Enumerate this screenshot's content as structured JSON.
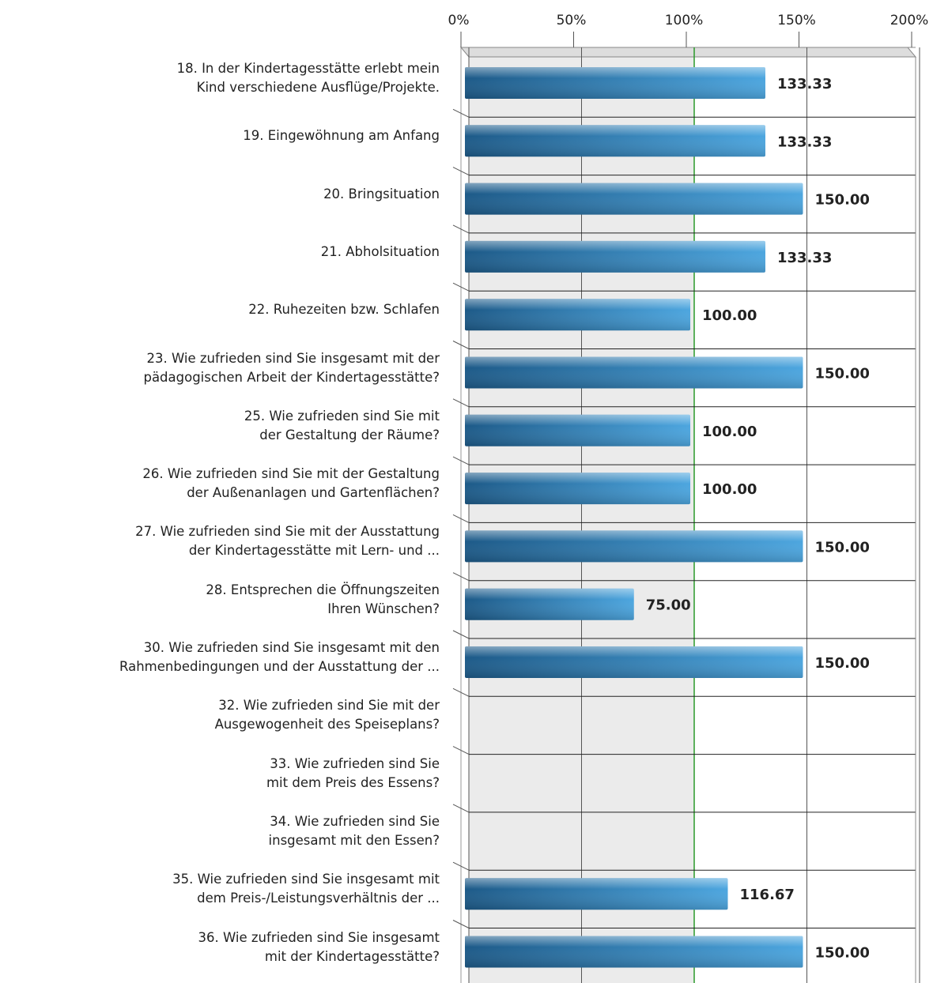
{
  "chart_data": {
    "type": "barh",
    "categories": [
      "18. In der Kindertagesstätte erlebt mein\nKind verschiedene Ausflüge/Projekte.",
      "19. Eingewöhnung am Anfang",
      "20. Bringsituation",
      "21. Abholsituation",
      "22. Ruhezeiten bzw. Schlafen",
      "23. Wie zufrieden sind Sie insgesamt mit der\npädagogischen Arbeit der Kindertagesstätte?",
      "25. Wie zufrieden sind Sie mit\nder Gestaltung der Räume?",
      "26. Wie zufrieden sind Sie mit der Gestaltung\nder Außenanlagen und Gartenflächen?",
      "27. Wie zufrieden sind Sie mit der Ausstattung\nder Kindertagesstätte mit Lern- und ...",
      "28. Entsprechen die Öffnungszeiten\nIhren Wünschen?",
      "30. Wie zufrieden sind Sie insgesamt mit den\nRahmenbedingungen und der Ausstattung der ...",
      "32. Wie zufrieden sind Sie mit der\nAusgewogenheit des Speiseplans?",
      "33. Wie zufrieden sind Sie\nmit dem Preis des Essens?",
      "34. Wie zufrieden sind Sie\ninsgesamt mit den Essen?",
      "35. Wie zufrieden sind Sie insgesamt mit\ndem Preis-/Leistungsverhältnis der ...",
      "36. Wie zufrieden sind Sie insgesamt\nmit der Kindertagesstätte?"
    ],
    "values": [
      133.33,
      133.33,
      150,
      133.33,
      100,
      150,
      100,
      100,
      150,
      75,
      150,
      null,
      null,
      null,
      116.67,
      150
    ],
    "value_labels": [
      "133.33",
      "133.33",
      "150.00",
      "133.33",
      "100.00",
      "150.00",
      "100.00",
      "100.00",
      "150.00",
      "75.00",
      "150.00",
      null,
      null,
      null,
      "116.67",
      "150.00"
    ],
    "color": "#2f82c0",
    "xlim": [
      0,
      200
    ],
    "xticks": [
      {
        "value": 0,
        "label": "0%"
      },
      {
        "value": 50,
        "label": "50%"
      },
      {
        "value": 100,
        "label": "100%"
      },
      {
        "value": 150,
        "label": "150%"
      },
      {
        "value": 200,
        "label": "200%"
      }
    ],
    "grid": true,
    "reference_value": 100,
    "reference_color": "#2a9a2a"
  }
}
